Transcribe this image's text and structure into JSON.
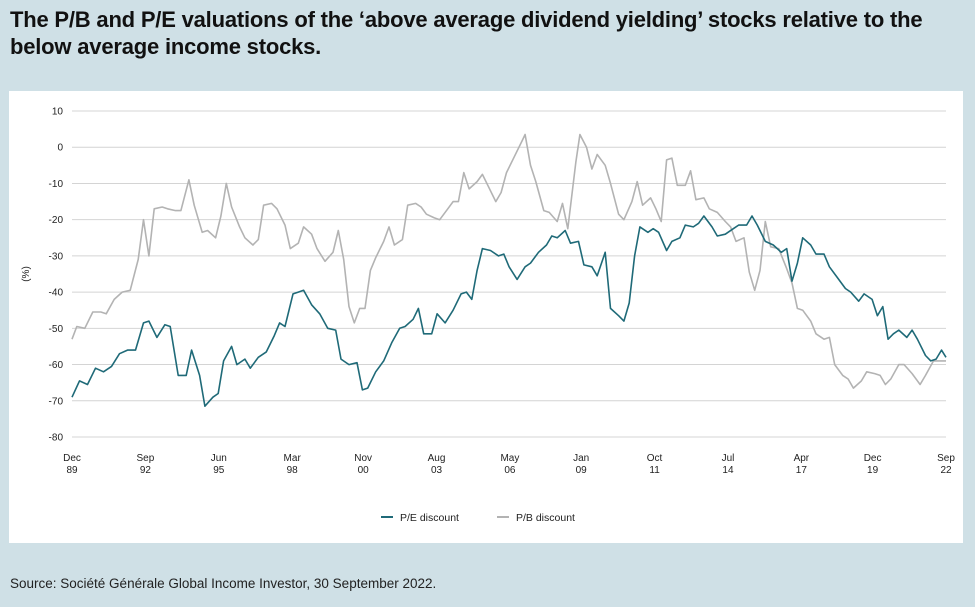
{
  "title": "The P/B and P/E valuations of the ‘above average dividend yielding’ stocks relative to the below average income stocks.",
  "source": "Source: Société Générale Global Income Investor, 30 September 2022.",
  "colors": {
    "pe": "#1f6a78",
    "pb": "#b3b3b3",
    "grid": "#d4d4d4",
    "background": "#cfe0e6"
  },
  "chart_data": {
    "type": "line",
    "title": "",
    "xlabel": "",
    "ylabel": "(%)",
    "ylim": [
      -80,
      10
    ],
    "yticks": [
      10,
      0,
      -10,
      -20,
      -30,
      -40,
      -50,
      -60,
      -70,
      -80
    ],
    "xlim": [
      1989.92,
      2022.67
    ],
    "xticks": [
      {
        "x": 1989.92,
        "label": [
          "Dec",
          "89"
        ]
      },
      {
        "x": 1992.67,
        "label": [
          "Sep",
          "92"
        ]
      },
      {
        "x": 1995.42,
        "label": [
          "Jun",
          "95"
        ]
      },
      {
        "x": 1998.17,
        "label": [
          "Mar",
          "98"
        ]
      },
      {
        "x": 2000.83,
        "label": [
          "Nov",
          "00"
        ]
      },
      {
        "x": 2003.58,
        "label": [
          "Aug",
          "03"
        ]
      },
      {
        "x": 2006.33,
        "label": [
          "May",
          "06"
        ]
      },
      {
        "x": 2009.0,
        "label": [
          "Jan",
          "09"
        ]
      },
      {
        "x": 2011.75,
        "label": [
          "Oct",
          "11"
        ]
      },
      {
        "x": 2014.5,
        "label": [
          "Jul",
          "14"
        ]
      },
      {
        "x": 2017.25,
        "label": [
          "Apr",
          "17"
        ]
      },
      {
        "x": 2019.92,
        "label": [
          "Dec",
          "19"
        ]
      },
      {
        "x": 2022.67,
        "label": [
          "Sep",
          "22"
        ]
      }
    ],
    "grid": true,
    "legend_position": "bottom-center",
    "series": [
      {
        "name": "P/E discount",
        "color": "#1f6a78",
        "points": [
          [
            1989.92,
            -69
          ],
          [
            1990.2,
            -64.5
          ],
          [
            1990.5,
            -65.5
          ],
          [
            1990.8,
            -61
          ],
          [
            1991.1,
            -62
          ],
          [
            1991.4,
            -60.5
          ],
          [
            1991.7,
            -57
          ],
          [
            1992.0,
            -56
          ],
          [
            1992.3,
            -56
          ],
          [
            1992.6,
            -48.5
          ],
          [
            1992.8,
            -48
          ],
          [
            1993.1,
            -52.5
          ],
          [
            1993.4,
            -49
          ],
          [
            1993.6,
            -49.5
          ],
          [
            1993.9,
            -63
          ],
          [
            1994.2,
            -63
          ],
          [
            1994.4,
            -56
          ],
          [
            1994.7,
            -63
          ],
          [
            1994.9,
            -71.5
          ],
          [
            1995.2,
            -69
          ],
          [
            1995.4,
            -68
          ],
          [
            1995.6,
            -59
          ],
          [
            1995.9,
            -55
          ],
          [
            1996.1,
            -60
          ],
          [
            1996.4,
            -58.5
          ],
          [
            1996.6,
            -61
          ],
          [
            1996.9,
            -58
          ],
          [
            1997.2,
            -56.5
          ],
          [
            1997.5,
            -52
          ],
          [
            1997.7,
            -48.5
          ],
          [
            1997.9,
            -49.5
          ],
          [
            1998.2,
            -40.5
          ],
          [
            1998.4,
            -40
          ],
          [
            1998.6,
            -39.5
          ],
          [
            1998.9,
            -43.5
          ],
          [
            1999.2,
            -46
          ],
          [
            1999.5,
            -50
          ],
          [
            1999.8,
            -50.5
          ],
          [
            2000.0,
            -58.5
          ],
          [
            2000.3,
            -60
          ],
          [
            2000.6,
            -59.5
          ],
          [
            2000.8,
            -67
          ],
          [
            2001.0,
            -66.5
          ],
          [
            2001.3,
            -62
          ],
          [
            2001.6,
            -59
          ],
          [
            2001.9,
            -54
          ],
          [
            2002.2,
            -50
          ],
          [
            2002.4,
            -49.5
          ],
          [
            2002.7,
            -47.5
          ],
          [
            2002.9,
            -44.5
          ],
          [
            2003.1,
            -51.5
          ],
          [
            2003.4,
            -51.5
          ],
          [
            2003.6,
            -46
          ],
          [
            2003.9,
            -48.5
          ],
          [
            2004.2,
            -45
          ],
          [
            2004.5,
            -40.5
          ],
          [
            2004.7,
            -40
          ],
          [
            2004.9,
            -42
          ],
          [
            2005.1,
            -34
          ],
          [
            2005.3,
            -28
          ],
          [
            2005.6,
            -28.5
          ],
          [
            2005.9,
            -30
          ],
          [
            2006.1,
            -29.5
          ],
          [
            2006.3,
            -33
          ],
          [
            2006.6,
            -36.5
          ],
          [
            2006.9,
            -33
          ],
          [
            2007.1,
            -32
          ],
          [
            2007.4,
            -29
          ],
          [
            2007.7,
            -27
          ],
          [
            2007.9,
            -24.5
          ],
          [
            2008.1,
            -25
          ],
          [
            2008.4,
            -23
          ],
          [
            2008.6,
            -26.5
          ],
          [
            2008.9,
            -26
          ],
          [
            2009.1,
            -32.5
          ],
          [
            2009.4,
            -33
          ],
          [
            2009.6,
            -35.5
          ],
          [
            2009.9,
            -29
          ],
          [
            2010.1,
            -44.5
          ],
          [
            2010.4,
            -46.5
          ],
          [
            2010.6,
            -48
          ],
          [
            2010.8,
            -43
          ],
          [
            2011.0,
            -30
          ],
          [
            2011.2,
            -22
          ],
          [
            2011.5,
            -23.5
          ],
          [
            2011.7,
            -22.5
          ],
          [
            2011.9,
            -23.5
          ],
          [
            2012.2,
            -28.5
          ],
          [
            2012.4,
            -26
          ],
          [
            2012.7,
            -25
          ],
          [
            2012.9,
            -21.5
          ],
          [
            2013.2,
            -22
          ],
          [
            2013.4,
            -21
          ],
          [
            2013.6,
            -19
          ],
          [
            2013.9,
            -22
          ],
          [
            2014.1,
            -24.5
          ],
          [
            2014.4,
            -24
          ],
          [
            2014.7,
            -22.5
          ],
          [
            2014.9,
            -21.5
          ],
          [
            2015.2,
            -21.5
          ],
          [
            2015.4,
            -19
          ],
          [
            2015.6,
            -21.5
          ],
          [
            2015.9,
            -26
          ],
          [
            2016.2,
            -27
          ],
          [
            2016.5,
            -29
          ],
          [
            2016.7,
            -28
          ],
          [
            2016.9,
            -37
          ],
          [
            2017.1,
            -32
          ],
          [
            2017.3,
            -25
          ],
          [
            2017.6,
            -27
          ],
          [
            2017.8,
            -29.5
          ],
          [
            2018.1,
            -29.5
          ],
          [
            2018.3,
            -33
          ],
          [
            2018.6,
            -36
          ],
          [
            2018.9,
            -39
          ],
          [
            2019.1,
            -40
          ],
          [
            2019.4,
            -42.5
          ],
          [
            2019.6,
            -40.5
          ],
          [
            2019.9,
            -42
          ],
          [
            2020.1,
            -46.5
          ],
          [
            2020.3,
            -44
          ],
          [
            2020.5,
            -53
          ],
          [
            2020.7,
            -51.5
          ],
          [
            2020.9,
            -50.5
          ],
          [
            2021.2,
            -52.5
          ],
          [
            2021.4,
            -50.5
          ],
          [
            2021.6,
            -53
          ],
          [
            2021.9,
            -57.5
          ],
          [
            2022.1,
            -59
          ],
          [
            2022.3,
            -58.5
          ],
          [
            2022.5,
            -56
          ],
          [
            2022.67,
            -58
          ]
        ]
      },
      {
        "name": "P/B discount",
        "color": "#b3b3b3",
        "points": [
          [
            1989.92,
            -53
          ],
          [
            1990.1,
            -49.5
          ],
          [
            1990.4,
            -50
          ],
          [
            1990.7,
            -45.5
          ],
          [
            1991.0,
            -45.5
          ],
          [
            1991.2,
            -46
          ],
          [
            1991.5,
            -42
          ],
          [
            1991.8,
            -40
          ],
          [
            1992.1,
            -39.5
          ],
          [
            1992.4,
            -31
          ],
          [
            1992.6,
            -20
          ],
          [
            1992.8,
            -30
          ],
          [
            1993.0,
            -17
          ],
          [
            1993.3,
            -16.5
          ],
          [
            1993.5,
            -17
          ],
          [
            1993.8,
            -17.5
          ],
          [
            1994.0,
            -17.5
          ],
          [
            1994.3,
            -9
          ],
          [
            1994.5,
            -16
          ],
          [
            1994.8,
            -23.5
          ],
          [
            1995.0,
            -23
          ],
          [
            1995.3,
            -25
          ],
          [
            1995.5,
            -19
          ],
          [
            1995.7,
            -10
          ],
          [
            1995.9,
            -16.5
          ],
          [
            1996.2,
            -22
          ],
          [
            1996.4,
            -25
          ],
          [
            1996.7,
            -27
          ],
          [
            1996.9,
            -25.5
          ],
          [
            1997.1,
            -16
          ],
          [
            1997.4,
            -15.5
          ],
          [
            1997.6,
            -17
          ],
          [
            1997.9,
            -21.5
          ],
          [
            1998.1,
            -28
          ],
          [
            1998.4,
            -26.5
          ],
          [
            1998.6,
            -22
          ],
          [
            1998.9,
            -24
          ],
          [
            1999.1,
            -28
          ],
          [
            1999.4,
            -31.5
          ],
          [
            1999.7,
            -29
          ],
          [
            1999.9,
            -23
          ],
          [
            2000.1,
            -31
          ],
          [
            2000.3,
            -44
          ],
          [
            2000.5,
            -48.5
          ],
          [
            2000.7,
            -44.5
          ],
          [
            2000.9,
            -44.5
          ],
          [
            2001.1,
            -34
          ],
          [
            2001.3,
            -30.5
          ],
          [
            2001.6,
            -26
          ],
          [
            2001.8,
            -22
          ],
          [
            2002.0,
            -27
          ],
          [
            2002.3,
            -25.5
          ],
          [
            2002.5,
            -16
          ],
          [
            2002.8,
            -15.5
          ],
          [
            2003.0,
            -16.5
          ],
          [
            2003.2,
            -18.5
          ],
          [
            2003.5,
            -19.5
          ],
          [
            2003.7,
            -20
          ],
          [
            2004.0,
            -17
          ],
          [
            2004.2,
            -15
          ],
          [
            2004.4,
            -15
          ],
          [
            2004.6,
            -7
          ],
          [
            2004.8,
            -11.5
          ],
          [
            2005.1,
            -9.5
          ],
          [
            2005.3,
            -7.5
          ],
          [
            2005.5,
            -10.5
          ],
          [
            2005.8,
            -15
          ],
          [
            2006.0,
            -12.5
          ],
          [
            2006.2,
            -7
          ],
          [
            2006.5,
            -2.5
          ],
          [
            2006.8,
            2
          ],
          [
            2006.9,
            3.5
          ],
          [
            2007.1,
            -5
          ],
          [
            2007.3,
            -9.5
          ],
          [
            2007.6,
            -17.5
          ],
          [
            2007.8,
            -18
          ],
          [
            2008.1,
            -20.5
          ],
          [
            2008.3,
            -15.5
          ],
          [
            2008.5,
            -22.5
          ],
          [
            2008.8,
            -4
          ],
          [
            2008.95,
            3.5
          ],
          [
            2009.2,
            0
          ],
          [
            2009.4,
            -6
          ],
          [
            2009.6,
            -2
          ],
          [
            2009.9,
            -5
          ],
          [
            2010.1,
            -10
          ],
          [
            2010.4,
            -18.5
          ],
          [
            2010.6,
            -20
          ],
          [
            2010.9,
            -15
          ],
          [
            2011.1,
            -9.5
          ],
          [
            2011.3,
            -16
          ],
          [
            2011.6,
            -14
          ],
          [
            2011.8,
            -17
          ],
          [
            2012.0,
            -20.5
          ],
          [
            2012.2,
            -3.5
          ],
          [
            2012.4,
            -3
          ],
          [
            2012.6,
            -10.5
          ],
          [
            2012.9,
            -10.5
          ],
          [
            2013.1,
            -6.5
          ],
          [
            2013.3,
            -14.5
          ],
          [
            2013.6,
            -14
          ],
          [
            2013.8,
            -17
          ],
          [
            2014.1,
            -18
          ],
          [
            2014.4,
            -20.5
          ],
          [
            2014.6,
            -22
          ],
          [
            2014.8,
            -26
          ],
          [
            2015.1,
            -25
          ],
          [
            2015.3,
            -34.5
          ],
          [
            2015.5,
            -39.5
          ],
          [
            2015.7,
            -34
          ],
          [
            2015.9,
            -20.5
          ],
          [
            2016.1,
            -27.5
          ],
          [
            2016.4,
            -28
          ],
          [
            2016.7,
            -33.5
          ],
          [
            2016.9,
            -37.5
          ],
          [
            2017.1,
            -44.5
          ],
          [
            2017.3,
            -45
          ],
          [
            2017.6,
            -48
          ],
          [
            2017.8,
            -51.5
          ],
          [
            2018.1,
            -53
          ],
          [
            2018.3,
            -52.5
          ],
          [
            2018.5,
            -60
          ],
          [
            2018.8,
            -63
          ],
          [
            2019.0,
            -64
          ],
          [
            2019.2,
            -66.5
          ],
          [
            2019.5,
            -64.5
          ],
          [
            2019.7,
            -62
          ],
          [
            2020.0,
            -62.5
          ],
          [
            2020.2,
            -63
          ],
          [
            2020.4,
            -65.5
          ],
          [
            2020.6,
            -64
          ],
          [
            2020.9,
            -60
          ],
          [
            2021.1,
            -60
          ],
          [
            2021.4,
            -62.5
          ],
          [
            2021.7,
            -65.5
          ],
          [
            2021.9,
            -63
          ],
          [
            2022.2,
            -59
          ],
          [
            2022.5,
            -59
          ],
          [
            2022.67,
            -59
          ]
        ]
      }
    ]
  }
}
